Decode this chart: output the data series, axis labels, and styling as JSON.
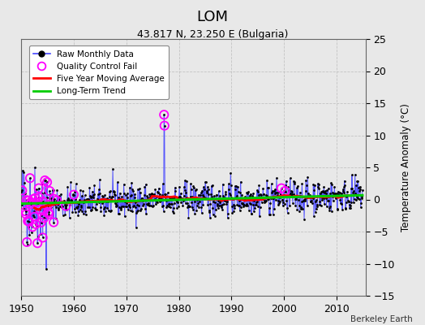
{
  "title": "LOM",
  "subtitle": "43.817 N, 23.250 E (Bulgaria)",
  "ylabel": "Temperature Anomaly (°C)",
  "footer": "Berkeley Earth",
  "xlim": [
    1950,
    2015.5
  ],
  "ylim": [
    -15,
    25
  ],
  "yticks": [
    -15,
    -10,
    -5,
    0,
    5,
    10,
    15,
    20,
    25
  ],
  "xticks": [
    1950,
    1960,
    1970,
    1980,
    1990,
    2000,
    2010
  ],
  "raw_line_color": "#4444ff",
  "raw_dot_color": "#000000",
  "ma_color": "#ff0000",
  "trend_color": "#00cc00",
  "qc_color": "#ff00ff",
  "background_color": "#e8e8e8",
  "plot_background": "#e8e8e8",
  "seed": 42
}
